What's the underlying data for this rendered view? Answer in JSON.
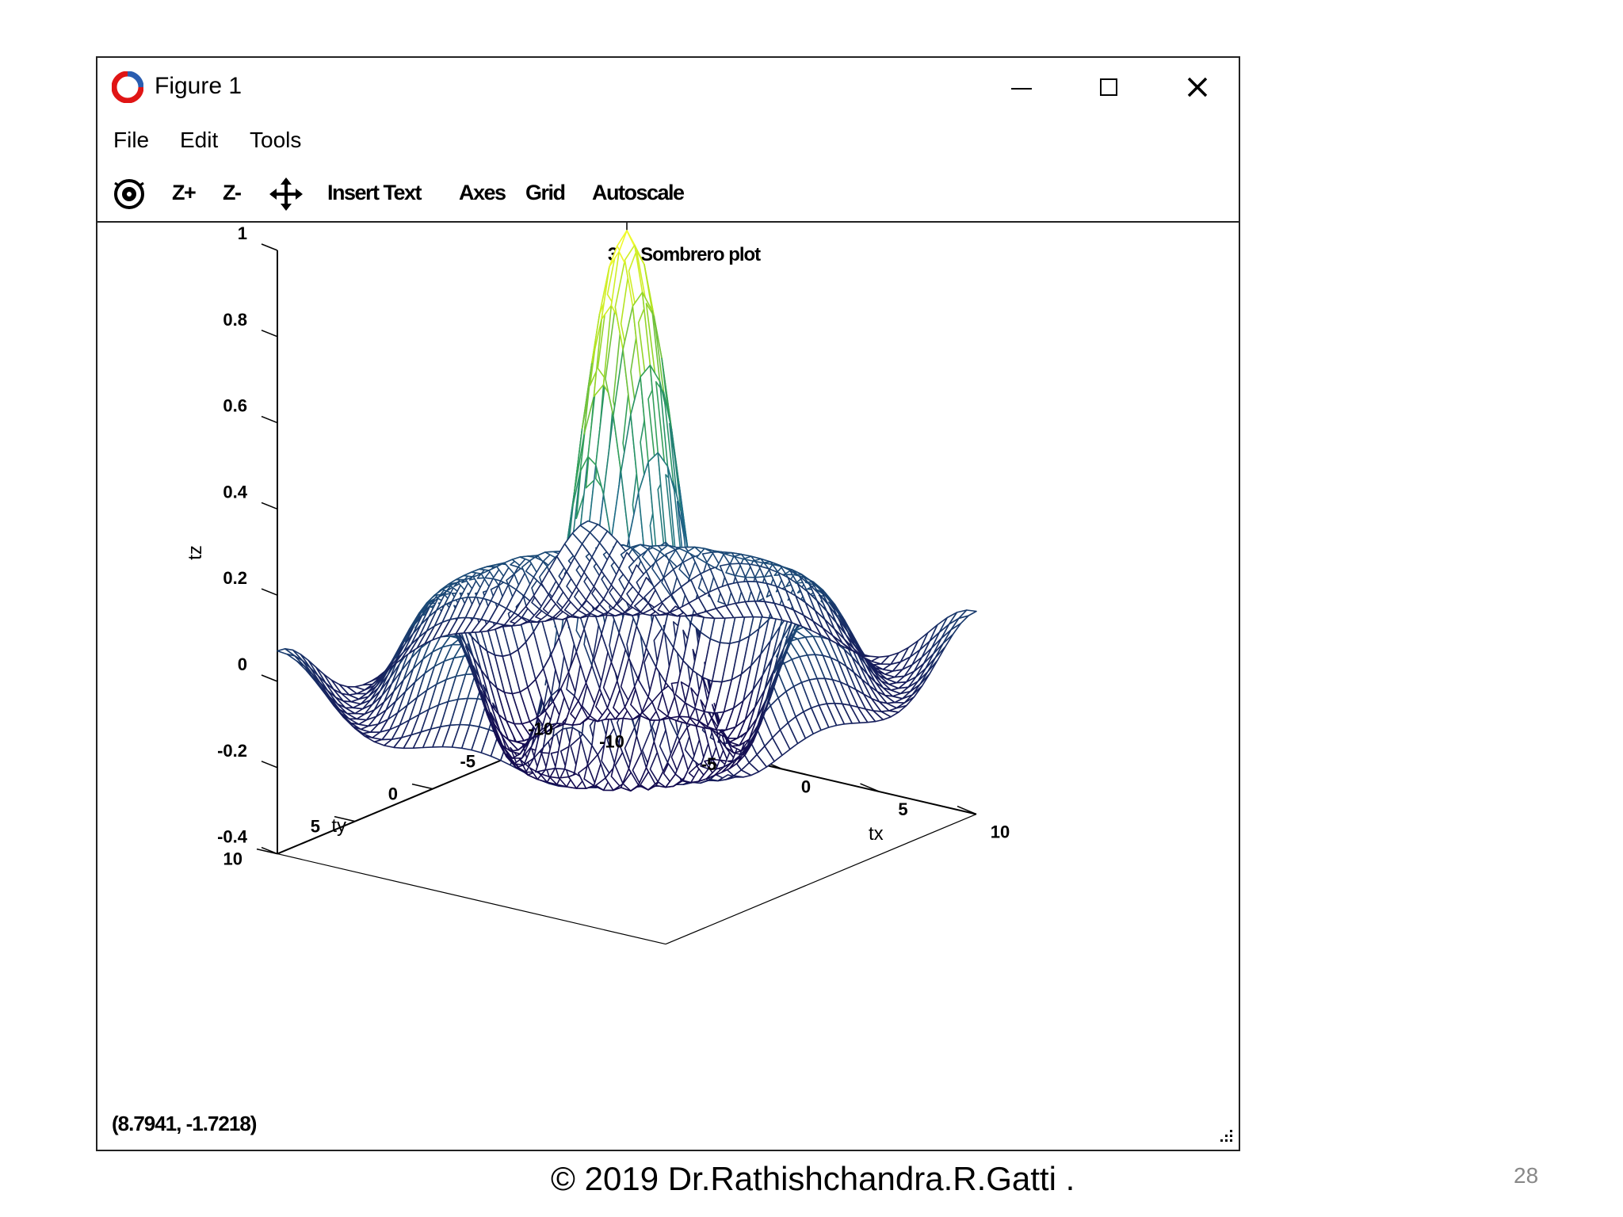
{
  "window": {
    "title": "Figure 1",
    "controls": {
      "minimize": "minimize-icon",
      "maximize": "maximize-icon",
      "close": "close-icon"
    }
  },
  "menu": [
    "File",
    "Edit",
    "Tools"
  ],
  "toolbar": {
    "rotate_icon": "rotate-icon",
    "zoom_in": "Z+",
    "zoom_out": "Z-",
    "pan_icon": "pan-icon",
    "insert_text": "Insert Text",
    "axes": "Axes",
    "grid": "Grid",
    "autoscale": "Autoscale"
  },
  "chart_data": {
    "type": "surface",
    "function": "sombrero",
    "title": "3-D Sombrero plot",
    "xlabel": "tx",
    "ylabel": "ty",
    "zlabel": "tz",
    "xlim": [
      -10,
      10
    ],
    "ylim": [
      -10,
      10
    ],
    "zlim": [
      -0.4,
      1
    ],
    "xticks": [
      "-10",
      "-5",
      "0",
      "5",
      "10"
    ],
    "yticks": [
      "-10",
      "-5",
      "0",
      "5",
      "10"
    ],
    "zticks": [
      "-0.4",
      "-0.2",
      "0",
      "0.2",
      "0.4",
      "0.6",
      "0.8",
      "1"
    ],
    "grid_points": 41,
    "colormap": [
      "#140a50",
      "#1f6a8a",
      "#2a9a60",
      "#a8e020",
      "#ffff30"
    ]
  },
  "status": {
    "coordinates": "(8.7941, -1.7218)"
  },
  "footer": {
    "copyright": "© 2019 Dr.Rathishchandra.R.Gatti .",
    "page": "28"
  }
}
